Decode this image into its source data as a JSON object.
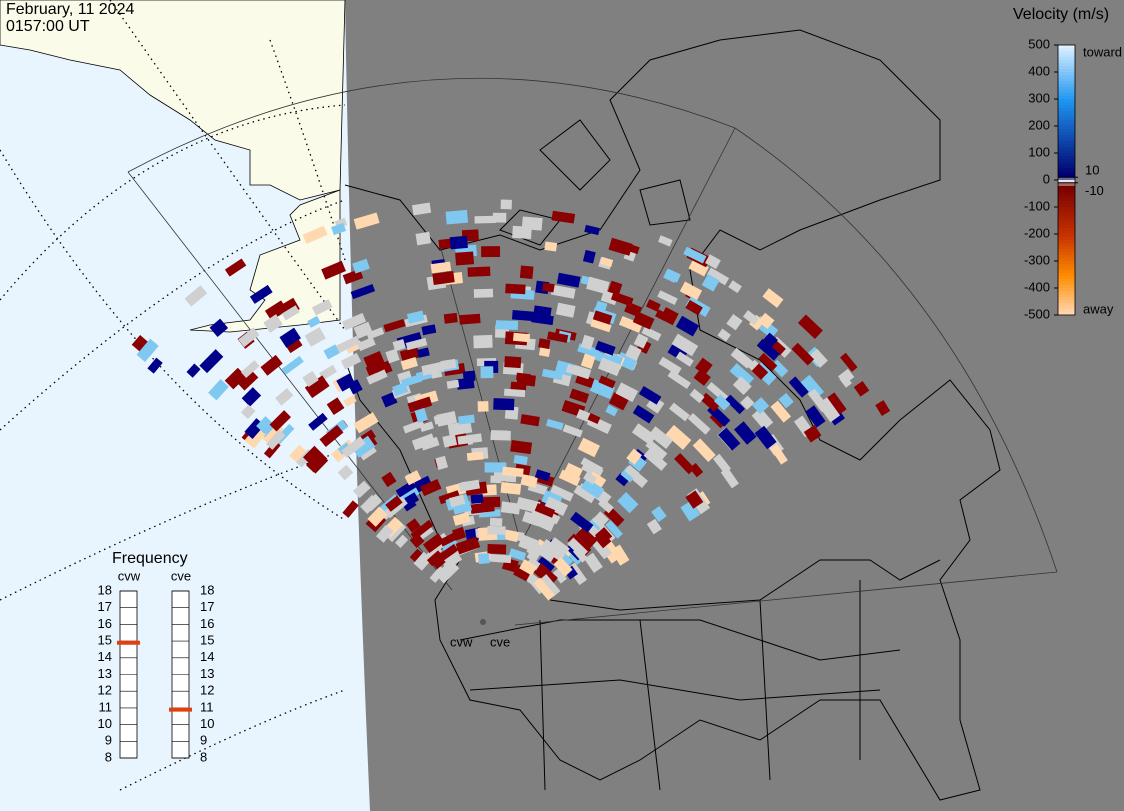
{
  "header": {
    "date": "February, 11 2024",
    "time": "0157:00 UT"
  },
  "colorbar": {
    "title": "Velocity (m/s)",
    "range": [
      500,
      -500
    ],
    "ticks": [
      500,
      400,
      300,
      200,
      100,
      0,
      -100,
      -200,
      -300,
      -400,
      -500
    ],
    "thresholds": [
      10,
      -10
    ],
    "toward": "toward",
    "away": "away"
  },
  "frequency": {
    "title": "Frequency",
    "range": [
      8,
      18
    ],
    "ticks": [
      8,
      9,
      10,
      11,
      12,
      13,
      14,
      15,
      16,
      17,
      18
    ],
    "radars": [
      {
        "name": "cvw",
        "value": 14.9
      },
      {
        "name": "cve",
        "value": 10.9
      }
    ]
  },
  "map_labels": [
    "cvw",
    "cve"
  ]
}
